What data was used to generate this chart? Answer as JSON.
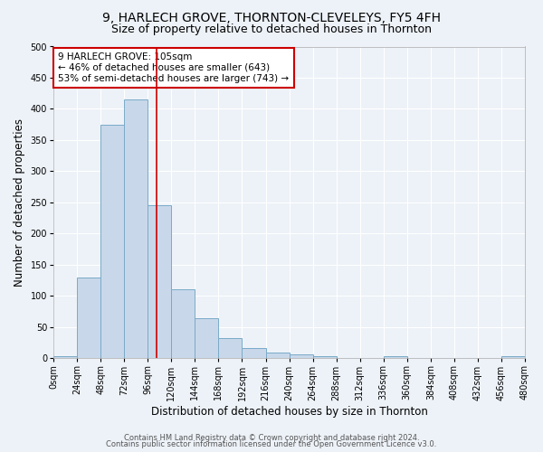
{
  "title": "9, HARLECH GROVE, THORNTON-CLEVELEYS, FY5 4FH",
  "subtitle": "Size of property relative to detached houses in Thornton",
  "xlabel": "Distribution of detached houses by size in Thornton",
  "ylabel": "Number of detached properties",
  "bin_edges": [
    0,
    24,
    48,
    72,
    96,
    120,
    144,
    168,
    192,
    216,
    240,
    264,
    288,
    312,
    336,
    360,
    384,
    408,
    432,
    456,
    480
  ],
  "bar_heights": [
    3,
    130,
    375,
    415,
    245,
    110,
    65,
    33,
    16,
    9,
    6,
    3,
    0,
    0,
    3,
    0,
    0,
    0,
    0,
    3
  ],
  "bar_facecolor": "#c8d8ea",
  "bar_edgecolor": "#7aaac8",
  "vline_x": 105,
  "vline_color": "#cc0000",
  "annotation_text": "9 HARLECH GROVE: 105sqm\n← 46% of detached houses are smaller (643)\n53% of semi-detached houses are larger (743) →",
  "annotation_box_edgecolor": "#cc0000",
  "annotation_box_facecolor": "white",
  "ylim": [
    0,
    500
  ],
  "yticks": [
    0,
    50,
    100,
    150,
    200,
    250,
    300,
    350,
    400,
    450,
    500
  ],
  "xtick_labels": [
    "0sqm",
    "24sqm",
    "48sqm",
    "72sqm",
    "96sqm",
    "120sqm",
    "144sqm",
    "168sqm",
    "192sqm",
    "216sqm",
    "240sqm",
    "264sqm",
    "288sqm",
    "312sqm",
    "336sqm",
    "360sqm",
    "384sqm",
    "408sqm",
    "432sqm",
    "456sqm",
    "480sqm"
  ],
  "footer_line1": "Contains HM Land Registry data © Crown copyright and database right 2024.",
  "footer_line2": "Contains public sector information licensed under the Open Government Licence v3.0.",
  "background_color": "#edf2f8",
  "grid_color": "#ffffff",
  "title_fontsize": 10,
  "subtitle_fontsize": 9,
  "axis_label_fontsize": 8.5,
  "tick_fontsize": 7,
  "footer_fontsize": 6,
  "annotation_fontsize": 7.5
}
